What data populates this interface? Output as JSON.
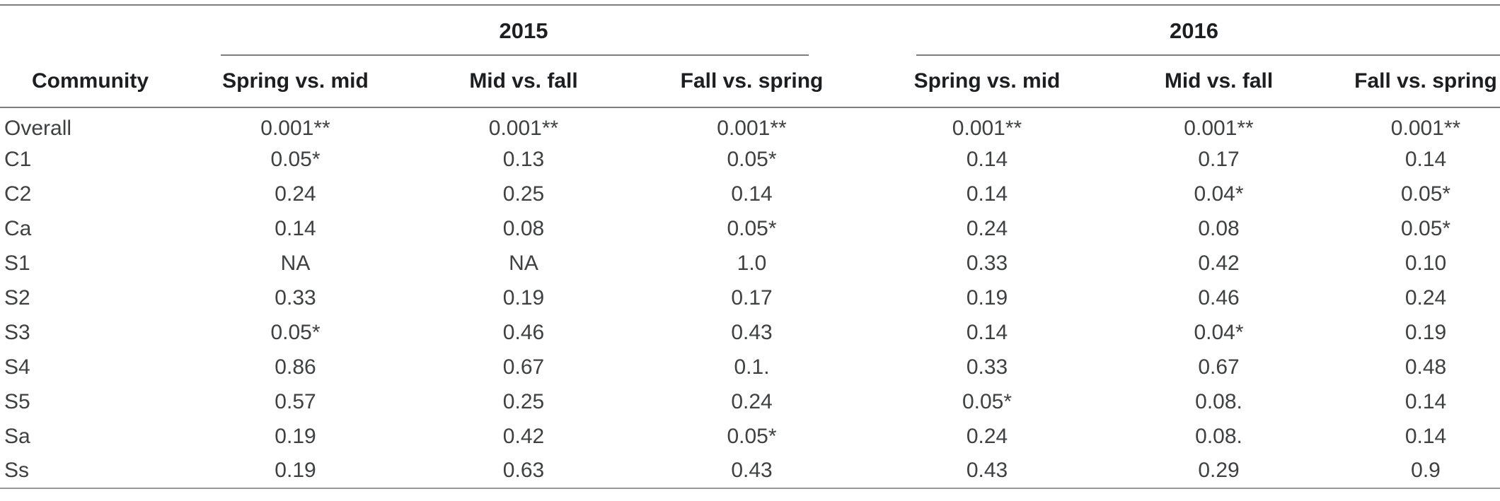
{
  "table": {
    "community_header": "Community",
    "year_groups": [
      {
        "year": "2015",
        "columns": [
          "Spring vs. mid",
          "Mid vs. fall",
          "Fall vs. spring"
        ]
      },
      {
        "year": "2016",
        "columns": [
          "Spring vs. mid",
          "Mid vs. fall",
          "Fall vs. spring"
        ]
      }
    ],
    "rows": [
      {
        "community": "Overall",
        "values": [
          "0.001**",
          "0.001**",
          "0.001**",
          "0.001**",
          "0.001**",
          "0.001**"
        ]
      },
      {
        "community": "C1",
        "values": [
          "0.05*",
          "0.13",
          "0.05*",
          "0.14",
          "0.17",
          "0.14"
        ]
      },
      {
        "community": "C2",
        "values": [
          "0.24",
          "0.25",
          "0.14",
          "0.14",
          "0.04*",
          "0.05*"
        ]
      },
      {
        "community": "Ca",
        "values": [
          "0.14",
          "0.08",
          "0.05*",
          "0.24",
          "0.08",
          "0.05*"
        ]
      },
      {
        "community": "S1",
        "values": [
          "NA",
          "NA",
          "1.0",
          "0.33",
          "0.42",
          "0.10"
        ]
      },
      {
        "community": "S2",
        "values": [
          "0.33",
          "0.19",
          "0.17",
          "0.19",
          "0.46",
          "0.24"
        ]
      },
      {
        "community": "S3",
        "values": [
          "0.05*",
          "0.46",
          "0.43",
          "0.14",
          "0.04*",
          "0.19"
        ]
      },
      {
        "community": "S4",
        "values": [
          "0.86",
          "0.67",
          "0.1.",
          "0.33",
          "0.67",
          "0.48"
        ]
      },
      {
        "community": "S5",
        "values": [
          "0.57",
          "0.25",
          "0.24",
          "0.05*",
          "0.08.",
          "0.14"
        ]
      },
      {
        "community": "Sa",
        "values": [
          "0.19",
          "0.42",
          "0.05*",
          "0.24",
          "0.08.",
          "0.14"
        ]
      },
      {
        "community": "Ss",
        "values": [
          "0.19",
          "0.63",
          "0.43",
          "0.43",
          "0.29",
          "0.9"
        ]
      }
    ],
    "colors": {
      "text": "#3f4041",
      "header_text": "#1d1e20",
      "rule": "#7c7d7f",
      "rule_light": "#98999b",
      "background": "#ffffff"
    }
  }
}
